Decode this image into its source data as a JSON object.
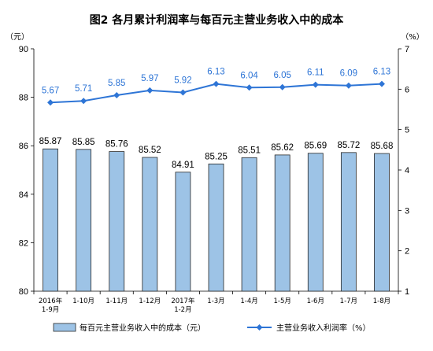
{
  "chart_data": {
    "title": "图2  各月累计利润率与每百元主营业务收入中的成本",
    "type": "bar+line",
    "categories": [
      [
        "2016年",
        "1-9月"
      ],
      [
        "1-10月"
      ],
      [
        "1-11月"
      ],
      [
        "1-12月"
      ],
      [
        "2017年",
        "1-2月"
      ],
      [
        "1-3月"
      ],
      [
        "1-4月"
      ],
      [
        "1-5月"
      ],
      [
        "1-6月"
      ],
      [
        "1-7月"
      ],
      [
        "1-8月"
      ]
    ],
    "left_axis": {
      "unit": "（元）",
      "ylim": [
        80,
        90
      ],
      "ticks": [
        "80",
        "82",
        "84",
        "86",
        "88",
        "90"
      ]
    },
    "right_axis": {
      "unit": "（%）",
      "ylim": [
        1,
        7
      ],
      "ticks": [
        "1",
        "2",
        "3",
        "4",
        "5",
        "6",
        "7"
      ]
    },
    "series": [
      {
        "name": "每百元主营业务收入中的成本（元）",
        "type": "bar",
        "axis": "left",
        "color": "#9dc3e6",
        "values": [
          85.87,
          85.85,
          85.76,
          85.52,
          84.91,
          85.25,
          85.51,
          85.62,
          85.69,
          85.72,
          85.68
        ]
      },
      {
        "name": "主营业务收入利润率（%）",
        "type": "line",
        "axis": "right",
        "color": "#2e75d6",
        "values": [
          5.67,
          5.71,
          5.85,
          5.97,
          5.92,
          6.13,
          6.04,
          6.05,
          6.11,
          6.09,
          6.13
        ]
      }
    ],
    "grid": false,
    "legend_position": "bottom"
  }
}
